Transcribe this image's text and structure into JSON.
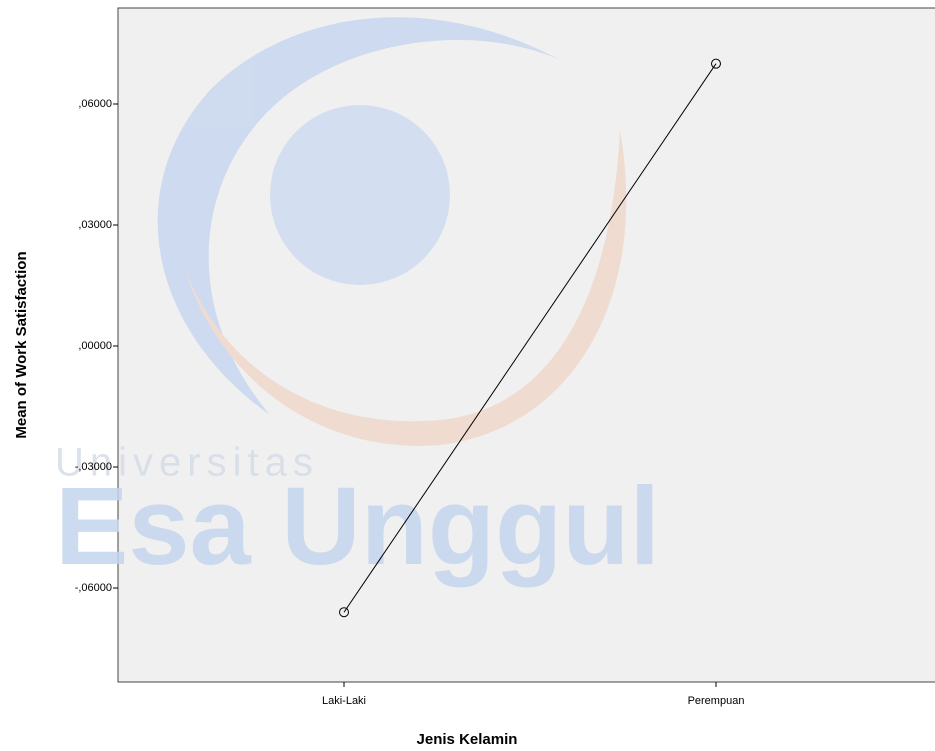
{
  "chart_data": {
    "type": "line",
    "x_label": "Jenis Kelamin",
    "y_label": "Mean of Work Satisfaction",
    "categories": [
      "Laki-Laki",
      "Perempuan"
    ],
    "values": [
      -0.066,
      0.07
    ],
    "color": "#000000",
    "ylim": [
      -0.0833,
      0.0838
    ],
    "yticks": [
      {
        "value": 0.06,
        "label": ",06000"
      },
      {
        "value": 0.03,
        "label": ",03000"
      },
      {
        "value": 0,
        "label": ",00000"
      },
      {
        "value": -0.03,
        "label": "-,03000"
      },
      {
        "value": -0.06,
        "label": "-,06000"
      }
    ],
    "grid": false
  },
  "watermark": {
    "line1": "Universitas",
    "line2": "Esa Unggul"
  }
}
